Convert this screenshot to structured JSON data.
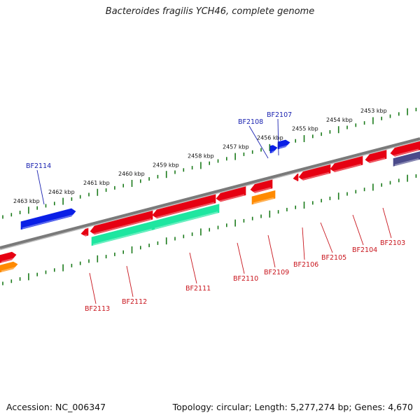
{
  "title": "Bacteroides fragilis YCH46, complete genome",
  "accession": "Accession: NC_006347",
  "summary": "Topology: circular; Length: 5,277,274 bp; Genes: 4,670",
  "colors": {
    "forward_gene": "#0a1fe6",
    "reverse_gene": "#e60012",
    "rna": "#1ee6a0",
    "other": "#ff8a00",
    "pseudo": "#4a4a8a",
    "backbone": "#7a7a7a",
    "tick": "#1a7a1a",
    "forward_label": "#1a22b0",
    "reverse_label": "#c8141c"
  },
  "kbp_labels": [
    "2463 kbp",
    "2462 kbp",
    "2461 kbp",
    "2460 kbp",
    "2459 kbp",
    "2458 kbp",
    "2457 kbp",
    "2456 kbp",
    "2455 kbp",
    "2454 kbp",
    "2453 kbp"
  ],
  "gene_labels": [
    "BF2114",
    "BF2108",
    "BF2107",
    "BF2113",
    "BF2112",
    "BF2111",
    "BF2110",
    "BF2109",
    "BF2106",
    "BF2105",
    "BF2104",
    "BF2103"
  ]
}
